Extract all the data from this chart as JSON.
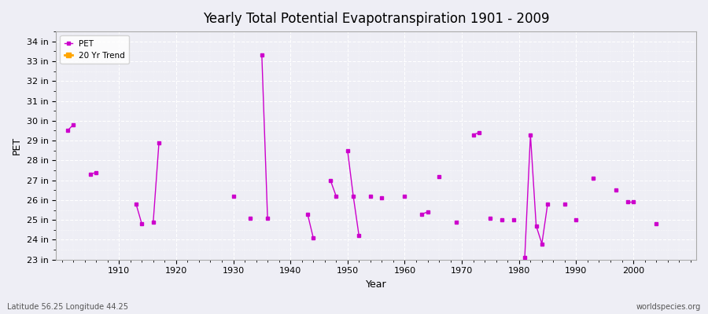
{
  "title": "Yearly Total Potential Evapotranspiration 1901 - 2009",
  "xlabel": "Year",
  "ylabel": "PET",
  "subtitle_left": "Latitude 56.25 Longitude 44.25",
  "subtitle_right": "worldspecies.org",
  "ylim": [
    23,
    34.5
  ],
  "xlim": [
    1899,
    2011
  ],
  "ytick_labels": [
    "23 in",
    "24 in",
    "25 in",
    "26 in",
    "27 in",
    "28 in",
    "29 in",
    "30 in",
    "31 in",
    "32 in",
    "33 in",
    "34 in"
  ],
  "ytick_values": [
    23,
    24,
    25,
    26,
    27,
    28,
    29,
    30,
    31,
    32,
    33,
    34
  ],
  "xtick_values": [
    1910,
    1920,
    1930,
    1940,
    1950,
    1960,
    1970,
    1980,
    1990,
    2000
  ],
  "pet_color": "#CC00CC",
  "trend_color": "#FFA500",
  "bg_color": "#EEEEF5",
  "grid_color": "#FFFFFF",
  "legend_bg": "#FFFFFF",
  "pet_data": [
    [
      1901,
      29.5
    ],
    [
      1902,
      29.8
    ],
    [
      1905,
      27.3
    ],
    [
      1906,
      27.4
    ],
    [
      1913,
      25.8
    ],
    [
      1914,
      24.8
    ],
    [
      1916,
      24.9
    ],
    [
      1917,
      28.9
    ],
    [
      1930,
      26.2
    ],
    [
      1933,
      25.1
    ],
    [
      1935,
      33.3
    ],
    [
      1936,
      25.1
    ],
    [
      1943,
      25.3
    ],
    [
      1944,
      24.1
    ],
    [
      1947,
      27.0
    ],
    [
      1948,
      26.2
    ],
    [
      1950,
      28.5
    ],
    [
      1951,
      26.2
    ],
    [
      1952,
      24.2
    ],
    [
      1954,
      26.2
    ],
    [
      1956,
      26.1
    ],
    [
      1960,
      26.2
    ],
    [
      1963,
      25.3
    ],
    [
      1964,
      25.4
    ],
    [
      1966,
      27.2
    ],
    [
      1969,
      24.9
    ],
    [
      1972,
      29.3
    ],
    [
      1973,
      29.4
    ],
    [
      1975,
      25.1
    ],
    [
      1977,
      25.0
    ],
    [
      1979,
      25.0
    ],
    [
      1981,
      23.1
    ],
    [
      1982,
      29.3
    ],
    [
      1983,
      24.7
    ],
    [
      1984,
      23.8
    ],
    [
      1985,
      25.8
    ],
    [
      1988,
      25.8
    ],
    [
      1990,
      25.0
    ],
    [
      1993,
      27.1
    ],
    [
      1997,
      26.5
    ],
    [
      1999,
      25.9
    ],
    [
      2000,
      25.9
    ],
    [
      2004,
      24.8
    ]
  ]
}
